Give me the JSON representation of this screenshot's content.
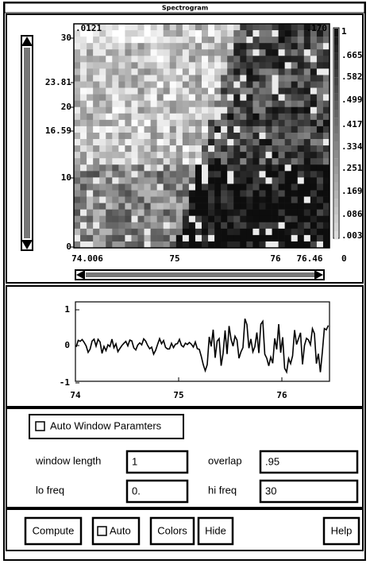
{
  "window": {
    "title": "Spectrogram"
  },
  "spectrogram": {
    "top_labels": [
      ".0121",
      ".170"
    ],
    "y_labels": [
      "30",
      "23.81",
      "20",
      "16.59",
      "10",
      "0"
    ],
    "x_labels": [
      "74.006",
      "75",
      "76",
      "76.46"
    ],
    "colorbar_labels": [
      "1",
      ".665",
      ".582",
      ".499",
      ".417",
      ".334",
      ".251",
      ".169",
      ".086",
      ".003",
      "0"
    ]
  },
  "waveform": {
    "y_labels": [
      "1",
      "0",
      "-1"
    ],
    "x_labels": [
      "74",
      "75",
      "76"
    ]
  },
  "auto_window": {
    "label": "Auto Window Paramters",
    "checked": false
  },
  "fields": [
    {
      "label": "window length",
      "value": "1"
    },
    {
      "label": "overlap",
      "value": ".95"
    },
    {
      "label": "lo freq",
      "value": "0."
    },
    {
      "label": "hi freq",
      "value": "30"
    }
  ],
  "buttons": [
    {
      "label": "Compute"
    },
    {
      "label": "Auto",
      "checked": false
    },
    {
      "label": "Colors"
    },
    {
      "label": "Hide"
    },
    {
      "label": "Help"
    }
  ]
}
